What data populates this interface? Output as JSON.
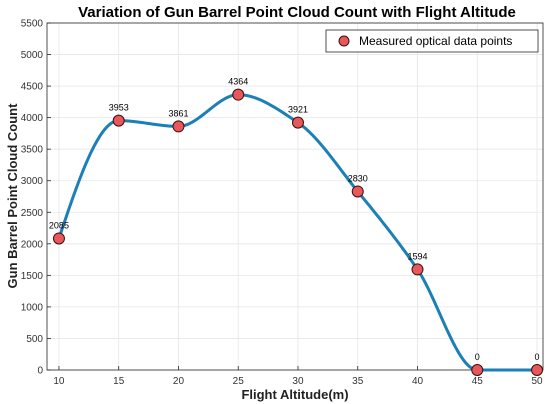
{
  "chart_data": {
    "type": "line",
    "title": "Variation of Gun Barrel Point Cloud Count with Flight Altitude",
    "xlabel": "Flight Altitude(m)",
    "ylabel": "Gun Barrel Point Cloud Count",
    "x": [
      10,
      15,
      20,
      25,
      30,
      35,
      40,
      45,
      50
    ],
    "series": [
      {
        "name": "Measured optical data points",
        "values": [
          2085,
          3953,
          3861,
          4364,
          3921,
          2830,
          1594,
          0,
          0
        ]
      }
    ],
    "data_labels": [
      "2085",
      "3953",
      "3861",
      "4364",
      "3921",
      "2830",
      "1594",
      "0",
      "0"
    ],
    "xticks": [
      10,
      15,
      20,
      25,
      30,
      35,
      40,
      45,
      50
    ],
    "yticks": [
      0,
      500,
      1000,
      1500,
      2000,
      2500,
      3000,
      3500,
      4000,
      4500,
      5000,
      5500
    ],
    "xlim": [
      9,
      50.5
    ],
    "ylim": [
      0,
      5500
    ],
    "grid": true,
    "legend_position": "top-right",
    "colors": {
      "line": "#1b7fb8",
      "marker_fill": "#e8575a",
      "marker_edge": "#3a1010",
      "grid": "#e6e6e6",
      "axes_bg": "#ffffff"
    }
  }
}
